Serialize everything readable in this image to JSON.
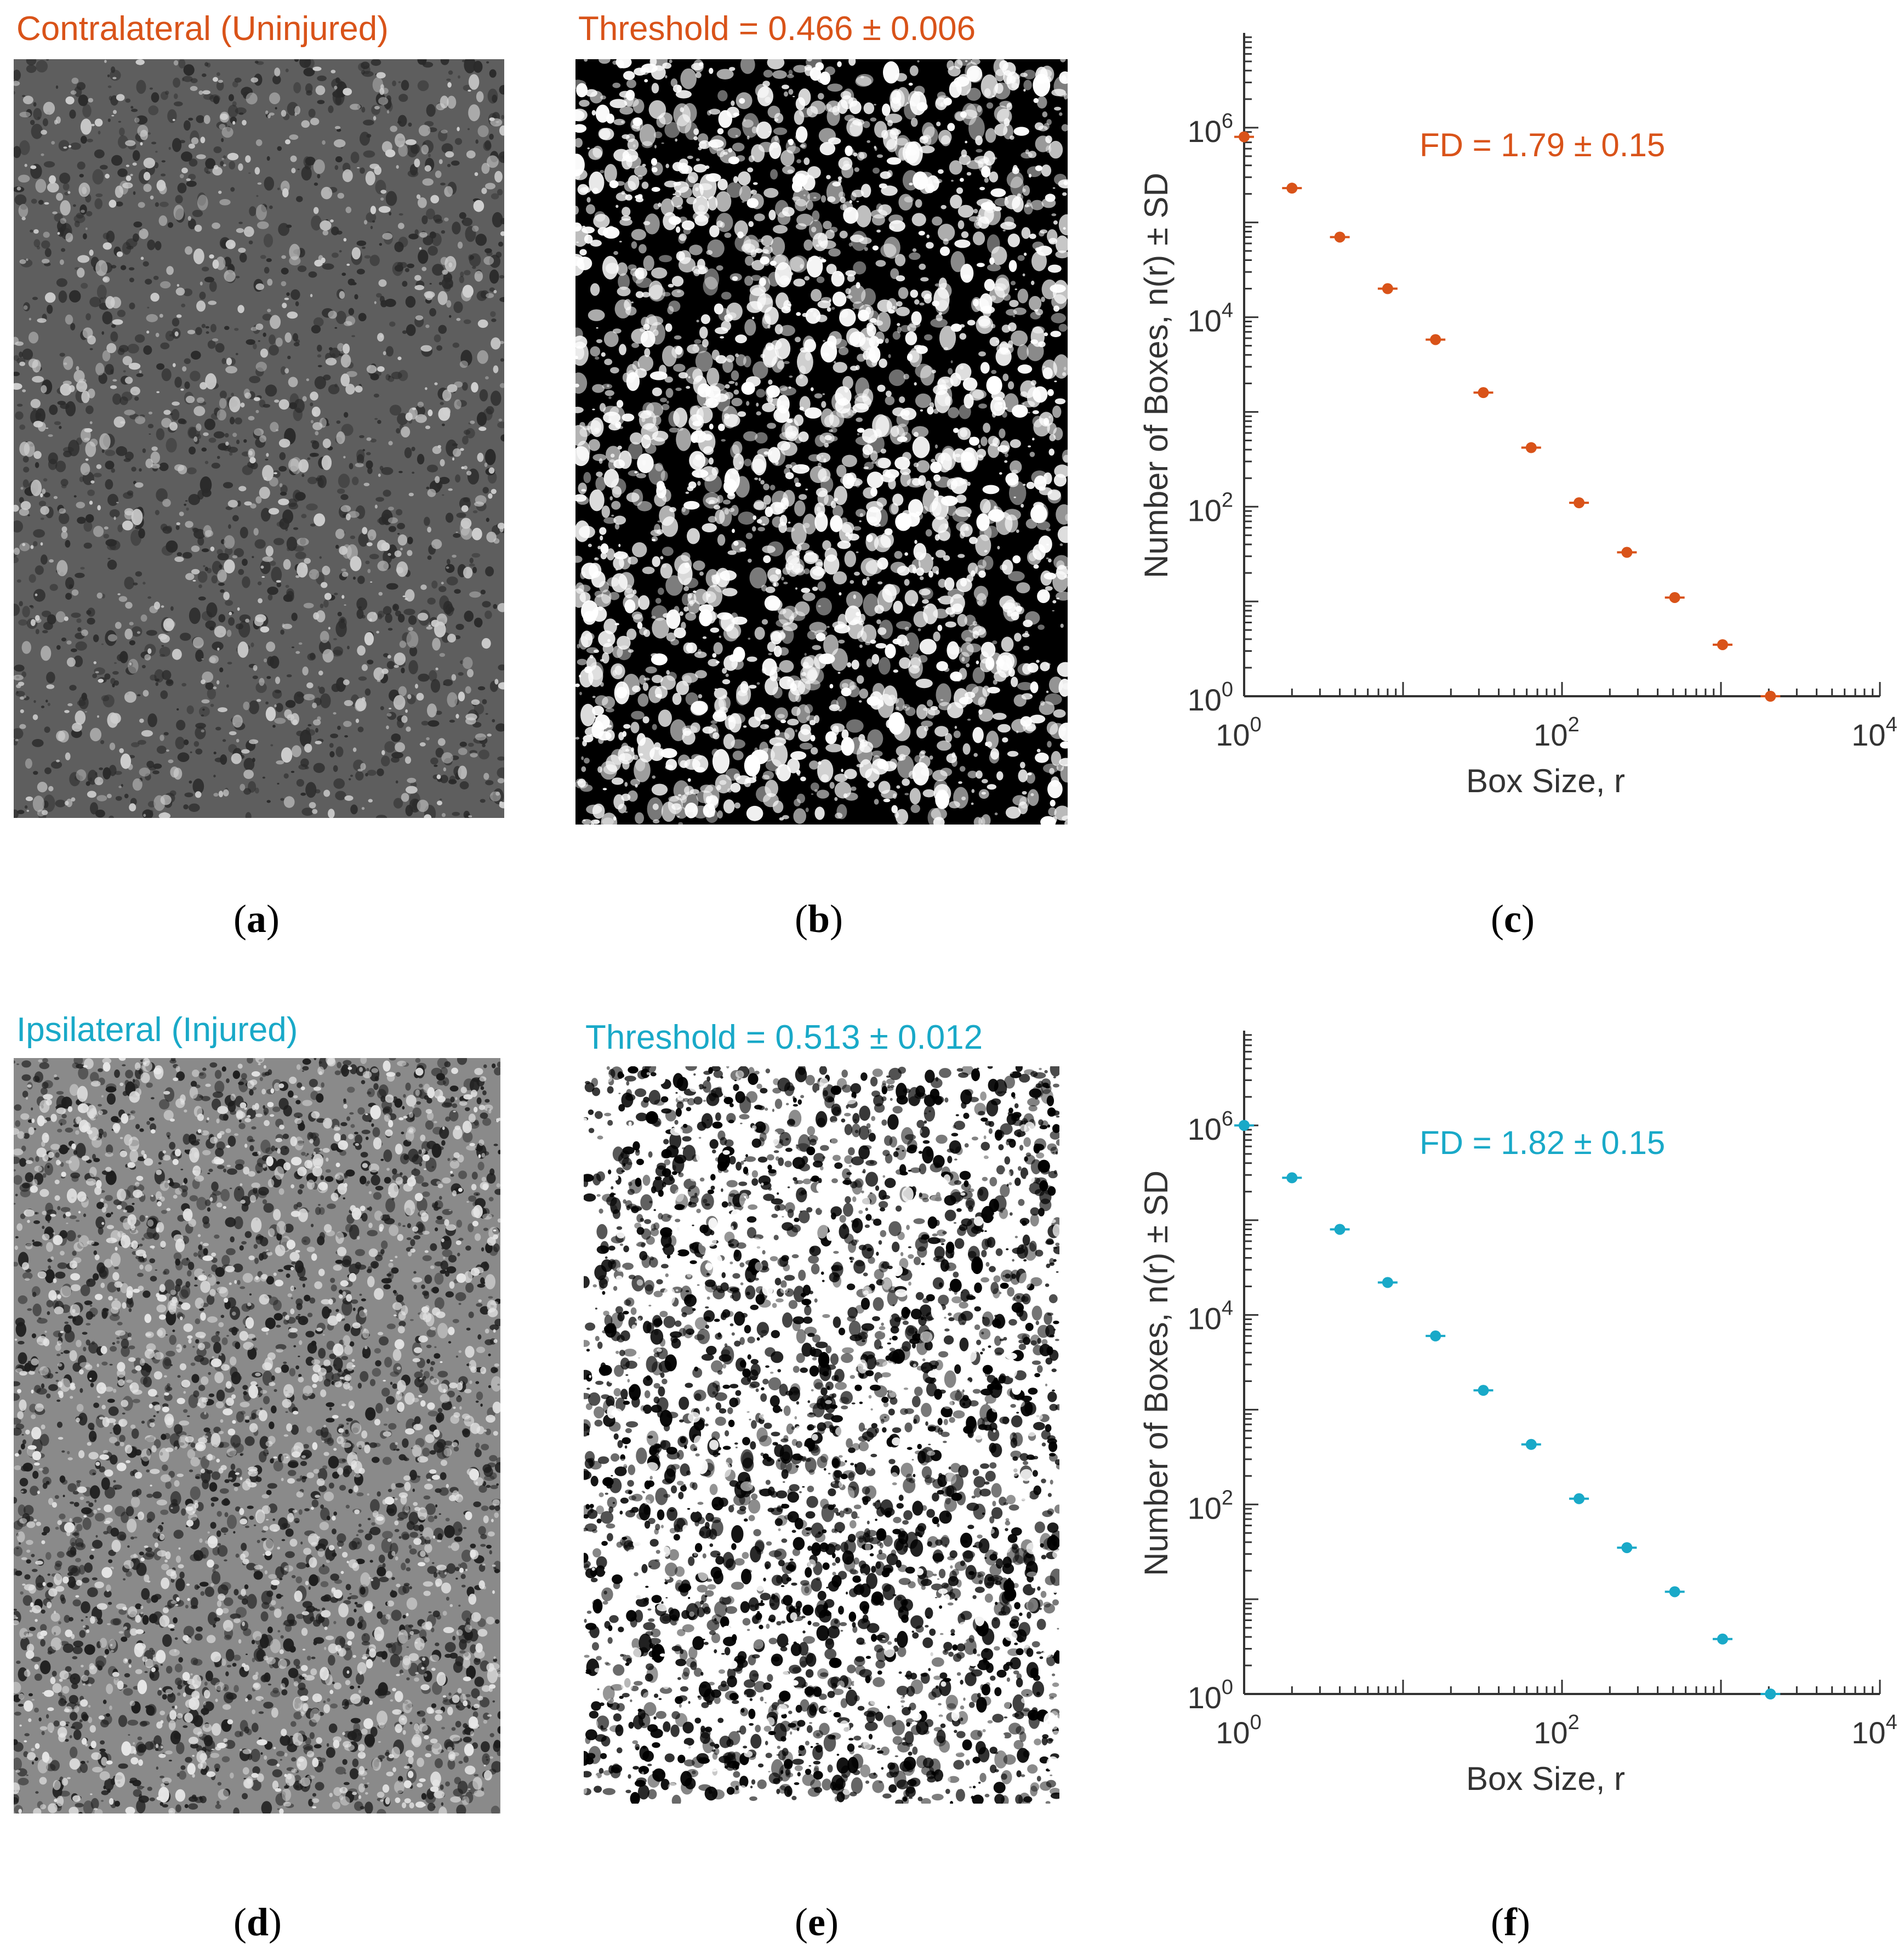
{
  "colors": {
    "uninjured": "#D95319",
    "injured": "#19A9C8",
    "axis": "#333333"
  },
  "rows": [
    {
      "image_title": "Contralateral (Uninjured)",
      "threshold_title": "Threshold = 0.466 ± 0.006",
      "captions": {
        "a": "a",
        "b": "b",
        "c": "c"
      }
    },
    {
      "image_title": "Ipsilateral (Injured)",
      "threshold_title": "Threshold = 0.513 ± 0.012",
      "captions": {
        "a": "d",
        "b": "e",
        "c": "f"
      }
    }
  ],
  "chart_data": [
    {
      "type": "scatter",
      "panel": "c",
      "series": [
        {
          "color": "#D95319",
          "x": [
            1,
            2,
            4,
            8,
            16,
            32,
            64,
            128,
            256,
            512,
            1024,
            2048
          ],
          "y": [
            800000,
            230000,
            70000,
            20000,
            5800,
            1600,
            420,
            110,
            33,
            11,
            3.5,
            1
          ]
        }
      ],
      "annotation": "FD = 1.79 ± 0.15",
      "xlabel": "Box Size, r",
      "ylabel": "Number of Boxes, n(r) ± SD",
      "xscale": "log",
      "yscale": "log",
      "xlim": [
        1,
        10000
      ],
      "ylim": [
        1,
        10000000
      ],
      "xticks": [
        {
          "base": "10",
          "exp": "0"
        },
        {
          "base": "10",
          "exp": "2"
        },
        {
          "base": "10",
          "exp": "4"
        }
      ],
      "yticks": [
        {
          "base": "10",
          "exp": "0"
        },
        {
          "base": "10",
          "exp": "2"
        },
        {
          "base": "10",
          "exp": "4"
        },
        {
          "base": "10",
          "exp": "6"
        }
      ],
      "grid": false
    },
    {
      "type": "scatter",
      "panel": "f",
      "series": [
        {
          "color": "#19A9C8",
          "x": [
            1,
            2,
            4,
            8,
            16,
            32,
            64,
            128,
            256,
            512,
            1024,
            2048
          ],
          "y": [
            1000000,
            280000,
            80000,
            22000,
            6000,
            1600,
            430,
            115,
            35,
            12,
            3.8,
            1
          ]
        }
      ],
      "annotation": "FD = 1.82 ± 0.15",
      "xlabel": "Box Size, r",
      "ylabel": "Number of Boxes, n(r)  ± SD",
      "xscale": "log",
      "yscale": "log",
      "xlim": [
        1,
        10000
      ],
      "ylim": [
        1,
        10000000
      ],
      "xticks": [
        {
          "base": "10",
          "exp": "0"
        },
        {
          "base": "10",
          "exp": "2"
        },
        {
          "base": "10",
          "exp": "4"
        }
      ],
      "yticks": [
        {
          "base": "10",
          "exp": "0"
        },
        {
          "base": "10",
          "exp": "2"
        },
        {
          "base": "10",
          "exp": "4"
        },
        {
          "base": "10",
          "exp": "6"
        }
      ],
      "grid": false
    }
  ]
}
